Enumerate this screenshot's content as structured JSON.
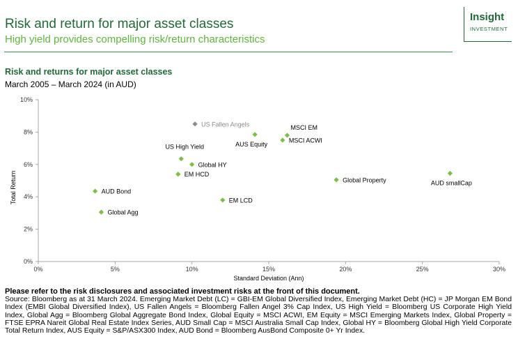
{
  "header": {
    "title": "Risk and return for major asset classes",
    "subtitle": "High yield provides compelling risk/return characteristics"
  },
  "logo": {
    "word": "Insight",
    "sub": "INVESTMENT"
  },
  "colors": {
    "accent": "#1f6b35",
    "highlight": "#5cb83a",
    "marker": "#7ac143",
    "marker_muted": "#8c8c8c"
  },
  "chart_data": {
    "type": "scatter",
    "title": "Risk and returns for major asset classes",
    "subtitle": "March 2005 – March 2024 (in AUD)",
    "xlabel": "Standard Deviation (Ann)",
    "ylabel": "Total Return",
    "xlim": [
      0,
      30
    ],
    "ylim": [
      0,
      10
    ],
    "x_ticks": [
      "0%",
      "5%",
      "10%",
      "15%",
      "20%",
      "25%",
      "30%"
    ],
    "y_ticks": [
      "0%",
      "2%",
      "4%",
      "6%",
      "8%",
      "10%"
    ],
    "grid": false,
    "points": [
      {
        "label": "US Fallen Angels",
        "x": 10.2,
        "y": 8.5,
        "muted": true,
        "label_pos": "right"
      },
      {
        "label": "MSCI EM",
        "x": 16.2,
        "y": 7.8,
        "label_pos": "above-right"
      },
      {
        "label": "AUS Equity",
        "x": 14.1,
        "y": 7.85,
        "label_pos": "below"
      },
      {
        "label": "MSCI ACWI",
        "x": 15.9,
        "y": 7.5,
        "label_pos": "right"
      },
      {
        "label": "US High Yield",
        "x": 9.3,
        "y": 6.35,
        "label_pos": "above"
      },
      {
        "label": "Global HY",
        "x": 10.0,
        "y": 6.0,
        "label_pos": "right"
      },
      {
        "label": "EM HCD",
        "x": 9.1,
        "y": 5.4,
        "label_pos": "right"
      },
      {
        "label": "Global Property",
        "x": 19.4,
        "y": 5.05,
        "label_pos": "right"
      },
      {
        "label": "AUD smallCap",
        "x": 26.8,
        "y": 5.45,
        "label_pos": "below-left"
      },
      {
        "label": "AUD Bond",
        "x": 3.7,
        "y": 4.35,
        "label_pos": "right"
      },
      {
        "label": "EM LCD",
        "x": 12.0,
        "y": 3.8,
        "label_pos": "right"
      },
      {
        "label": "Global Agg",
        "x": 4.1,
        "y": 3.05,
        "label_pos": "right"
      }
    ]
  },
  "notes": {
    "disclaimer": "Please refer to the risk disclosures and associated investment risks at the front of this document.",
    "source": "Source: Bloomberg as at 31 March 2024. Emerging Market Debt (LC) = GBI-EM Global Diversified Index, Emerging Market Debt (HC) = JP Morgan EM Bond Index (EMBI Global Diversified Index), US Fallen Angels = Bloomberg Fallen Angel 3% Cap Index, US High Yield = Bloomberg US Corporate High Yield Index, Global Agg = Bloomberg Global Aggregate Bond Index, Global Equity = MSCI ACWI, EM Equity = MSCI Emerging Markets Index, Global Property = FTSE EPRA Nareit Global Real Estate Index Series, AUD Small Cap = MSCI Australia Small Cap Index, Global HY = Bloomberg Global High Yield Corporate Total Return Index, AUS Equity = S&P/ASX300 Index, AUD Bond = Bloomberg AusBond Composite 0+ Yr Index."
  }
}
